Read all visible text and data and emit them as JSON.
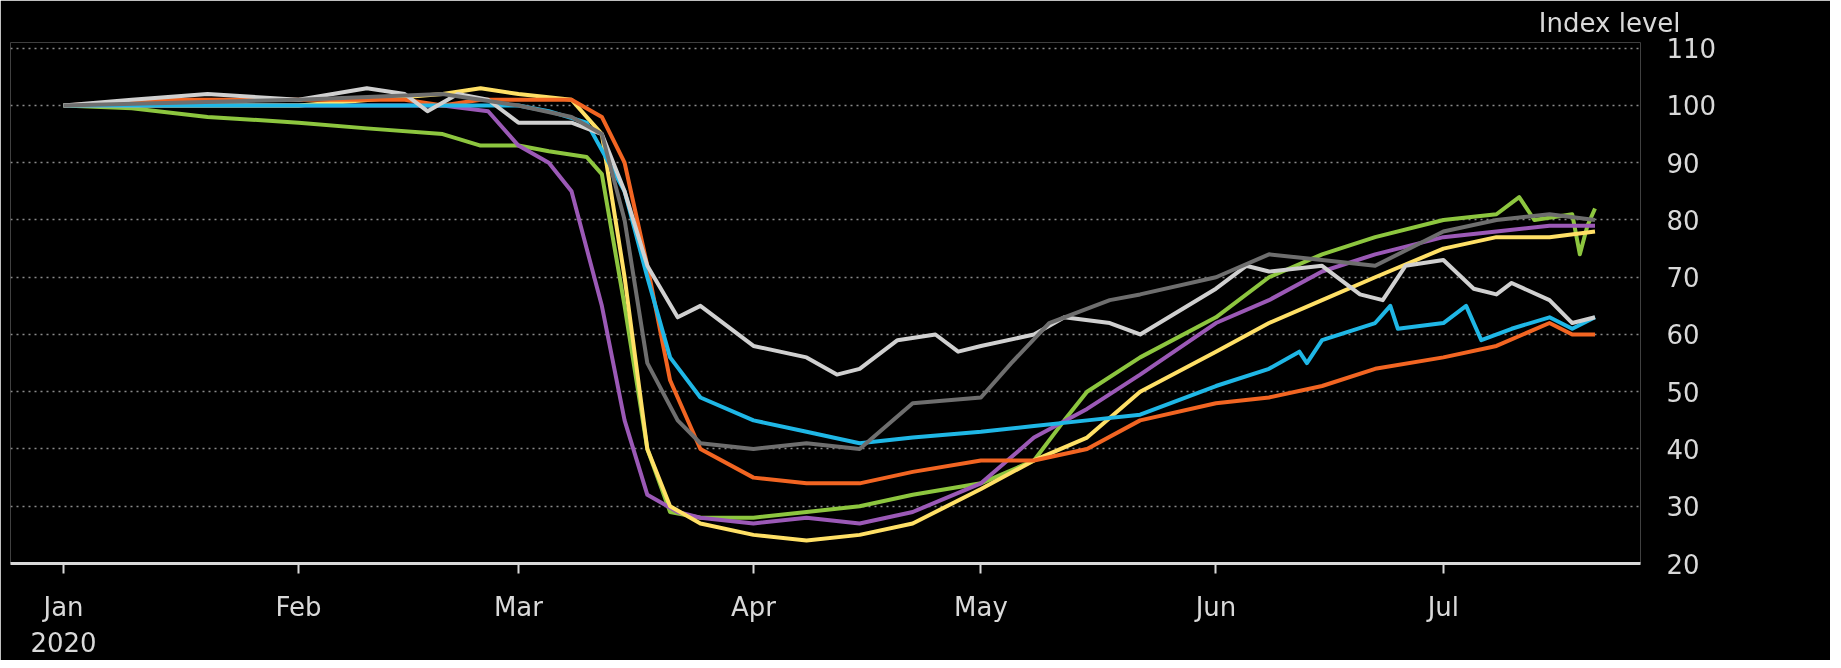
{
  "chart_data": {
    "type": "line",
    "ylabel": "Index level",
    "xlim": [
      "2019-12-25",
      "2020-07-27"
    ],
    "ylim": [
      20,
      111
    ],
    "xticks": [
      {
        "value": "2020-01-01",
        "label": "Jan\n2020"
      },
      {
        "value": "2020-02-01",
        "label": "Feb"
      },
      {
        "value": "2020-03-01",
        "label": "Mar"
      },
      {
        "value": "2020-04-01",
        "label": "Apr"
      },
      {
        "value": "2020-05-01",
        "label": "May"
      },
      {
        "value": "2020-06-01",
        "label": "Jun"
      },
      {
        "value": "2020-07-01",
        "label": "Jul"
      }
    ],
    "yticks": [
      20,
      30,
      40,
      50,
      60,
      70,
      80,
      90,
      100,
      110
    ],
    "grid": "y",
    "line_style": "solid",
    "marker": "none",
    "series": [
      {
        "color": "#8dc63f",
        "x": [
          "2020-01-01",
          "2020-01-10",
          "2020-01-20",
          "2020-02-01",
          "2020-02-10",
          "2020-02-20",
          "2020-02-25",
          "2020-03-01",
          "2020-03-05",
          "2020-03-10",
          "2020-03-12",
          "2020-03-15",
          "2020-03-18",
          "2020-03-21",
          "2020-03-25",
          "2020-04-01",
          "2020-04-08",
          "2020-04-15",
          "2020-04-22",
          "2020-05-01",
          "2020-05-08",
          "2020-05-12",
          "2020-05-15",
          "2020-05-22",
          "2020-06-01",
          "2020-06-08",
          "2020-06-15",
          "2020-06-22",
          "2020-07-01",
          "2020-07-08",
          "2020-07-11",
          "2020-07-13",
          "2020-07-18",
          "2020-07-19",
          "2020-07-20",
          "2020-07-21"
        ],
        "values": [
          100,
          99.5,
          98,
          97,
          96,
          95,
          93,
          93,
          92,
          91,
          88,
          65,
          40,
          29,
          28,
          28,
          29,
          30,
          32,
          34,
          38,
          45,
          50,
          56,
          63,
          70,
          74,
          77,
          80,
          81,
          84,
          80,
          81,
          74,
          79,
          82
        ]
      },
      {
        "color": "#9b59b6",
        "x": [
          "2020-01-01",
          "2020-02-01",
          "2020-02-20",
          "2020-02-26",
          "2020-03-01",
          "2020-03-05",
          "2020-03-08",
          "2020-03-12",
          "2020-03-15",
          "2020-03-18",
          "2020-03-22",
          "2020-03-25",
          "2020-04-01",
          "2020-04-08",
          "2020-04-15",
          "2020-04-22",
          "2020-05-01",
          "2020-05-08",
          "2020-05-15",
          "2020-05-22",
          "2020-06-01",
          "2020-06-08",
          "2020-06-15",
          "2020-06-22",
          "2020-07-01",
          "2020-07-08",
          "2020-07-15",
          "2020-07-21"
        ],
        "values": [
          100,
          100,
          100,
          99,
          93,
          90,
          85,
          65,
          45,
          32,
          29,
          28,
          27,
          28,
          27,
          29,
          34,
          42,
          47,
          53,
          62,
          66,
          71,
          74,
          77,
          78,
          79,
          79
        ]
      },
      {
        "color": "#ffe066",
        "x": [
          "2020-01-01",
          "2020-02-01",
          "2020-02-20",
          "2020-02-25",
          "2020-03-01",
          "2020-03-08",
          "2020-03-12",
          "2020-03-15",
          "2020-03-18",
          "2020-03-21",
          "2020-03-25",
          "2020-04-01",
          "2020-04-08",
          "2020-04-15",
          "2020-04-22",
          "2020-05-01",
          "2020-05-08",
          "2020-05-15",
          "2020-05-22",
          "2020-06-01",
          "2020-06-08",
          "2020-06-15",
          "2020-06-22",
          "2020-07-01",
          "2020-07-08",
          "2020-07-15",
          "2020-07-21"
        ],
        "values": [
          100,
          100,
          102,
          103,
          102,
          101,
          95,
          70,
          40,
          30,
          27,
          25,
          24,
          25,
          27,
          33,
          38,
          42,
          50,
          57,
          62,
          66,
          70,
          75,
          77,
          77,
          78
        ]
      },
      {
        "color": "#f26522",
        "x": [
          "2020-01-01",
          "2020-01-15",
          "2020-02-01",
          "2020-02-15",
          "2020-02-20",
          "2020-02-25",
          "2020-03-01",
          "2020-03-08",
          "2020-03-12",
          "2020-03-15",
          "2020-03-18",
          "2020-03-21",
          "2020-03-25",
          "2020-04-01",
          "2020-04-08",
          "2020-04-15",
          "2020-04-22",
          "2020-05-01",
          "2020-05-08",
          "2020-05-15",
          "2020-05-22",
          "2020-06-01",
          "2020-06-08",
          "2020-06-15",
          "2020-06-22",
          "2020-07-01",
          "2020-07-08",
          "2020-07-15",
          "2020-07-18",
          "2020-07-21"
        ],
        "values": [
          100,
          101,
          101,
          101,
          100,
          101,
          101,
          101,
          98,
          90,
          72,
          52,
          40,
          35,
          34,
          34,
          36,
          38,
          38,
          40,
          45,
          48,
          49,
          51,
          54,
          56,
          58,
          62,
          60,
          60
        ]
      },
      {
        "color": "#1fb7e6",
        "x": [
          "2020-01-01",
          "2020-02-01",
          "2020-02-20",
          "2020-03-01",
          "2020-03-05",
          "2020-03-10",
          "2020-03-15",
          "2020-03-18",
          "2020-03-21",
          "2020-03-25",
          "2020-04-01",
          "2020-04-08",
          "2020-04-15",
          "2020-04-22",
          "2020-05-01",
          "2020-05-08",
          "2020-05-15",
          "2020-05-22",
          "2020-06-01",
          "2020-06-08",
          "2020-06-12",
          "2020-06-13",
          "2020-06-15",
          "2020-06-22",
          "2020-06-24",
          "2020-06-25",
          "2020-07-01",
          "2020-07-04",
          "2020-07-06",
          "2020-07-10",
          "2020-07-15",
          "2020-07-18",
          "2020-07-21"
        ],
        "values": [
          100,
          100,
          100,
          100,
          99,
          97,
          85,
          70,
          56,
          49,
          45,
          43,
          41,
          42,
          43,
          44,
          45,
          46,
          51,
          54,
          57,
          55,
          59,
          62,
          65,
          61,
          62,
          65,
          59,
          61,
          63,
          61,
          63
        ]
      },
      {
        "color": "#d0d0d0",
        "x": [
          "2020-01-01",
          "2020-01-10",
          "2020-01-20",
          "2020-02-01",
          "2020-02-10",
          "2020-02-15",
          "2020-02-18",
          "2020-02-22",
          "2020-02-26",
          "2020-03-01",
          "2020-03-08",
          "2020-03-12",
          "2020-03-15",
          "2020-03-18",
          "2020-03-22",
          "2020-03-25",
          "2020-04-01",
          "2020-04-08",
          "2020-04-12",
          "2020-04-15",
          "2020-04-20",
          "2020-04-25",
          "2020-04-28",
          "2020-05-01",
          "2020-05-08",
          "2020-05-12",
          "2020-05-18",
          "2020-05-22",
          "2020-06-01",
          "2020-06-05",
          "2020-06-08",
          "2020-06-15",
          "2020-06-20",
          "2020-06-23",
          "2020-06-26",
          "2020-07-01",
          "2020-07-05",
          "2020-07-08",
          "2020-07-10",
          "2020-07-15",
          "2020-07-18",
          "2020-07-21"
        ],
        "values": [
          100,
          101,
          102,
          101,
          103,
          102,
          99,
          102,
          101,
          97,
          97,
          95,
          85,
          72,
          63,
          65,
          58,
          56,
          53,
          54,
          59,
          60,
          57,
          58,
          60,
          63,
          62,
          60,
          68,
          72,
          71,
          72,
          67,
          66,
          72,
          73,
          68,
          67,
          69,
          66,
          62,
          63
        ]
      },
      {
        "color": "#6e6e6e",
        "x": [
          "2020-01-01",
          "2020-02-01",
          "2020-02-20",
          "2020-03-01",
          "2020-03-08",
          "2020-03-12",
          "2020-03-15",
          "2020-03-18",
          "2020-03-22",
          "2020-03-25",
          "2020-04-01",
          "2020-04-08",
          "2020-04-15",
          "2020-04-22",
          "2020-05-01",
          "2020-05-05",
          "2020-05-10",
          "2020-05-18",
          "2020-05-22",
          "2020-06-01",
          "2020-06-08",
          "2020-06-15",
          "2020-06-22",
          "2020-07-01",
          "2020-07-08",
          "2020-07-15",
          "2020-07-21"
        ],
        "values": [
          100,
          101,
          102,
          100,
          98,
          95,
          80,
          55,
          45,
          41,
          40,
          41,
          40,
          48,
          49,
          55,
          62,
          66,
          67,
          70,
          74,
          73,
          72,
          78,
          80,
          81,
          80
        ]
      }
    ]
  }
}
